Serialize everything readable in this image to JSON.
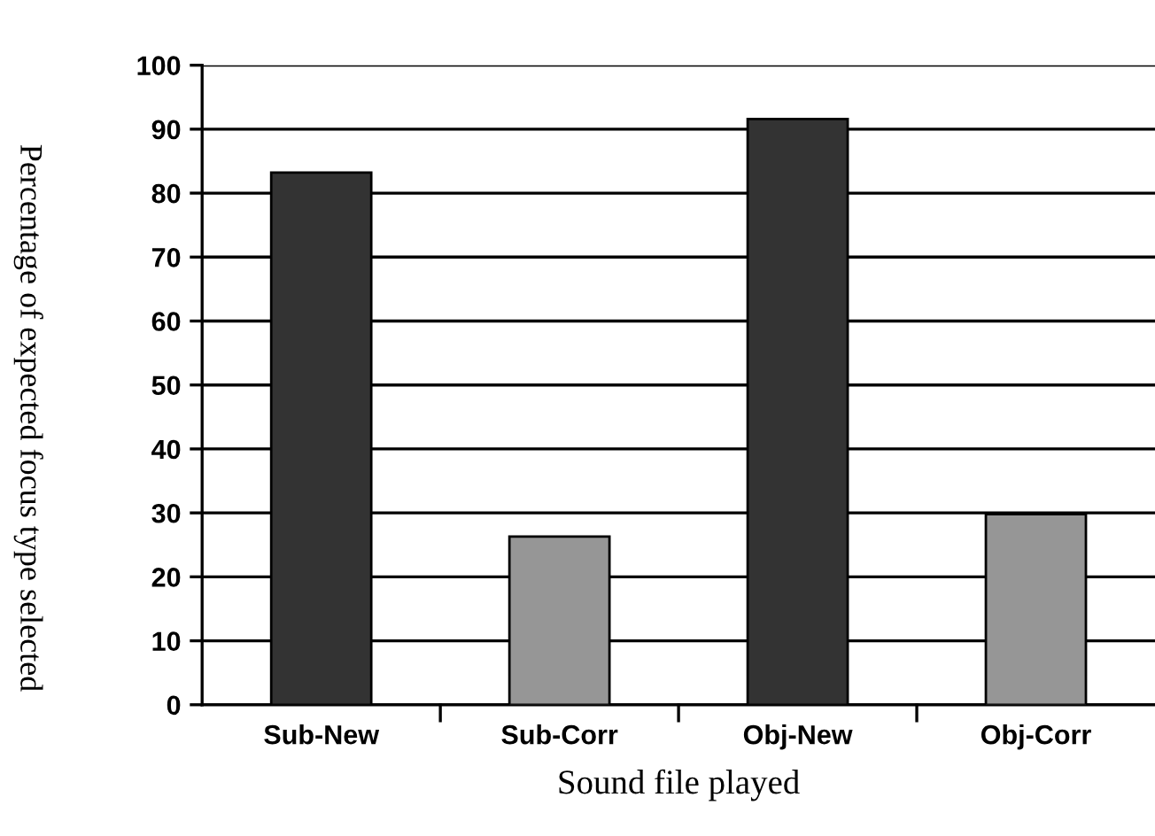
{
  "chart_data": {
    "type": "bar",
    "categories": [
      "Sub-New",
      "Sub-Corr",
      "Obj-New",
      "Obj-Corr"
    ],
    "values": [
      83.2,
      26.3,
      91.6,
      29.8
    ],
    "colors": [
      "#333333",
      "#969696",
      "#333333",
      "#969696"
    ],
    "xlabel": "Sound file played",
    "ylabel": "Percentage of expected focus type selected",
    "ylim": [
      0,
      100
    ],
    "yticks": [
      0,
      10,
      20,
      30,
      40,
      50,
      60,
      70,
      80,
      90,
      100
    ],
    "grid": "y"
  }
}
